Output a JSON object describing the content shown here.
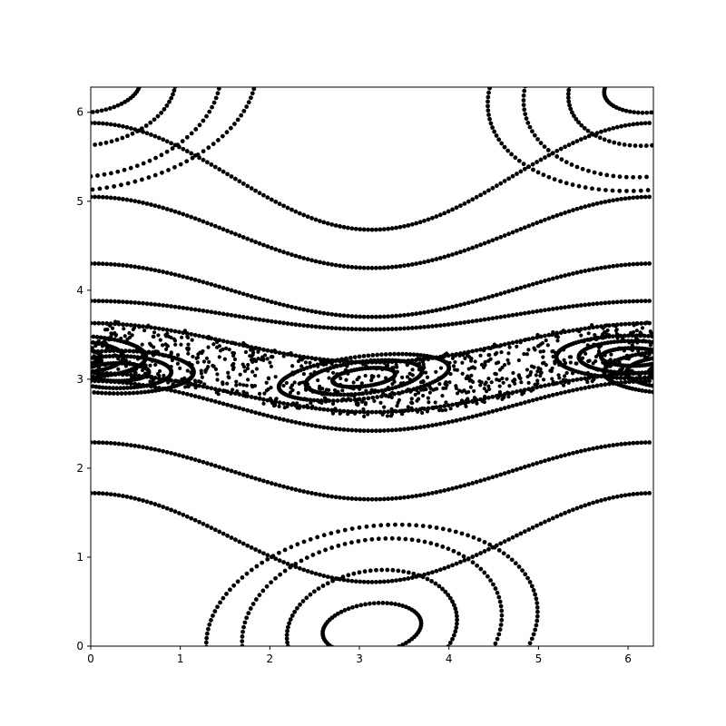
{
  "chart_data": {
    "type": "scatter",
    "title": "",
    "xlabel": "",
    "ylabel": "",
    "xlim": [
      0,
      6.283
    ],
    "ylim": [
      0,
      6.283
    ],
    "grid": false,
    "legend": "none",
    "marker_color": "#000000",
    "xticks": [
      0,
      1,
      2,
      3,
      4,
      5,
      6
    ],
    "yticks": [
      0,
      1,
      2,
      3,
      4,
      5,
      6
    ],
    "xtick_labels": [
      "0",
      "1",
      "2",
      "3",
      "4",
      "5",
      "6"
    ],
    "ytick_labels": [
      "0",
      "1",
      "2",
      "3",
      "4",
      "5",
      "6"
    ],
    "rotational_curves": [
      {
        "p0": 5.28,
        "amplitude": 0.6,
        "phase": 4.71
      },
      {
        "p0": 4.65,
        "amplitude": 0.4,
        "phase": 4.71
      },
      {
        "p0": 4.0,
        "amplitude": 0.3,
        "phase": 4.71
      },
      {
        "p0": 3.72,
        "amplitude": 0.16,
        "phase": 4.71
      },
      {
        "p0": 3.41,
        "amplitude": 0.22,
        "phase": 4.71
      },
      {
        "p0": 2.85,
        "amplitude": 0.22,
        "phase": 4.71
      },
      {
        "p0": 2.7,
        "amplitude": 0.28,
        "phase": 4.71
      },
      {
        "p0": 1.97,
        "amplitude": 0.32,
        "phase": 4.71
      },
      {
        "p0": 1.22,
        "amplitude": 0.5,
        "phase": 4.71
      }
    ],
    "islands": [
      {
        "center_x": 3.14,
        "center_p": 0.2,
        "radii": [
          [
            0.55,
            0.28
          ],
          [
            0.95,
            0.65
          ],
          [
            1.45,
            1.0
          ],
          [
            1.85,
            1.15
          ]
        ],
        "tilt": 0.25
      },
      {
        "center_x": 0.0,
        "center_p": 6.28,
        "radii": [
          [
            0.55,
            0.28
          ],
          [
            0.95,
            0.65
          ],
          [
            1.45,
            1.0
          ],
          [
            1.85,
            1.15
          ]
        ],
        "tilt": 0.25
      },
      {
        "center_x": 0.3,
        "center_p": 3.08,
        "radii": [
          [
            0.35,
            0.1
          ],
          [
            0.6,
            0.18
          ],
          [
            0.85,
            0.24
          ]
        ],
        "tilt": 0.0
      },
      {
        "center_x": 3.05,
        "center_p": 3.02,
        "radii": [
          [
            0.35,
            0.1
          ],
          [
            0.65,
            0.18
          ],
          [
            0.95,
            0.24
          ]
        ],
        "tilt": 0.28
      },
      {
        "center_x": 6.05,
        "center_p": 3.25,
        "radii": [
          [
            0.35,
            0.1
          ],
          [
            0.6,
            0.18
          ],
          [
            0.85,
            0.24
          ]
        ],
        "tilt": 0.0
      }
    ],
    "chaotic_layer": {
      "center_p": 3.12,
      "amplitude": 0.22,
      "half_width": 0.32,
      "count": 900
    }
  }
}
